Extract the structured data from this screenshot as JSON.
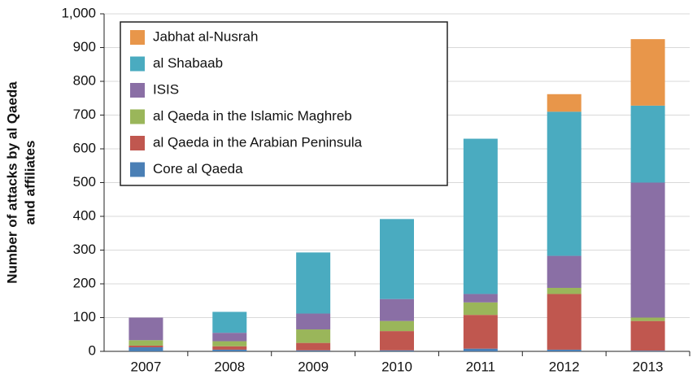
{
  "chart_data": {
    "type": "stacked_bar",
    "y_label": [
      "Number of attacks by al Qaeda",
      "and affiliates"
    ],
    "categories": [
      "2007",
      "2008",
      "2009",
      "2010",
      "2011",
      "2012",
      "2013"
    ],
    "series": [
      {
        "name": "Core al Qaeda",
        "color": "#4a7fb5",
        "values": [
          12,
          5,
          3,
          3,
          8,
          5,
          2
        ]
      },
      {
        "name": "al Qaeda in the Arabian Peninsula",
        "color": "#c0574f",
        "values": [
          5,
          10,
          22,
          57,
          100,
          165,
          88
        ]
      },
      {
        "name": "al Qaeda in the Islamic Maghreb",
        "color": "#9ab65a",
        "values": [
          16,
          15,
          40,
          30,
          37,
          18,
          10
        ]
      },
      {
        "name": "ISIS",
        "color": "#8a6fa5",
        "values": [
          67,
          25,
          47,
          65,
          25,
          95,
          400
        ]
      },
      {
        "name": "al Shabaab",
        "color": "#4aabc0",
        "values": [
          0,
          62,
          181,
          237,
          460,
          427,
          228
        ]
      },
      {
        "name": "Jabhat al-Nusrah",
        "color": "#e8964a",
        "values": [
          0,
          0,
          0,
          0,
          0,
          52,
          197
        ]
      }
    ],
    "ylim": [
      0,
      1000
    ],
    "yticks": [
      0,
      100,
      200,
      300,
      400,
      500,
      600,
      700,
      800,
      900,
      {
        "value": 1000,
        "label": "1,000"
      }
    ],
    "grid": true,
    "legend": "upper left"
  }
}
